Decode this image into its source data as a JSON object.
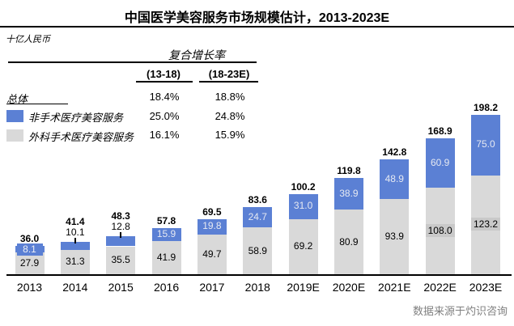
{
  "title": "中国医学美容服务市场规模估计，2013-2023E",
  "unit_label": "十亿人民币",
  "cagr_table": {
    "header": "复合增长率",
    "col1": "(13-18)",
    "col2": "(18-23E)",
    "rows": [
      {
        "label": "总体",
        "v1": "18.4%",
        "v2": "18.8%"
      },
      {
        "label": "非手术医疗美容服务",
        "v1": "25.0%",
        "v2": "24.8%"
      },
      {
        "label": "外科手术医疗美容服务",
        "v1": "16.1%",
        "v2": "15.9%"
      }
    ]
  },
  "source": "数据来源于灼识咨询",
  "colors": {
    "non_surgical_blue": "#5b80d4",
    "surgical_gray": "#d9d9d9",
    "inside_blue_text": "#e6e9f2",
    "gray_label_box": "#c9c9c9",
    "source_text": "#808080"
  },
  "chart_data": {
    "type": "bar",
    "stacked": true,
    "title": "中国医学美容服务市场规模估计，2013-2023E",
    "ylabel": "十亿人民币",
    "legend_position": "left",
    "grid": false,
    "categories": [
      "2013",
      "2014",
      "2015",
      "2016",
      "2017",
      "2018",
      "2019E",
      "2020E",
      "2021E",
      "2022E",
      "2023E"
    ],
    "series": [
      {
        "name": "外科手术医疗美容服务",
        "color": "#d9d9d9",
        "values": [
          27.9,
          31.3,
          35.5,
          41.9,
          49.7,
          58.9,
          69.2,
          80.9,
          93.9,
          108.0,
          123.2
        ]
      },
      {
        "name": "非手术医疗美容服务",
        "color": "#5b80d4",
        "values": [
          8.1,
          10.1,
          12.8,
          15.9,
          19.8,
          24.7,
          31.0,
          38.9,
          48.9,
          60.9,
          75.0
        ]
      }
    ],
    "totals": [
      36.0,
      41.4,
      48.3,
      57.8,
      69.5,
      83.6,
      100.2,
      119.8,
      142.8,
      168.9,
      198.2
    ],
    "cagr": {
      "total": {
        "2013_2018": 18.4,
        "2018_2023E": 18.8
      },
      "non_surgical": {
        "2013_2018": 25.0,
        "2018_2023E": 24.8
      },
      "surgical": {
        "2013_2018": 16.1,
        "2018_2023E": 15.9
      }
    }
  }
}
